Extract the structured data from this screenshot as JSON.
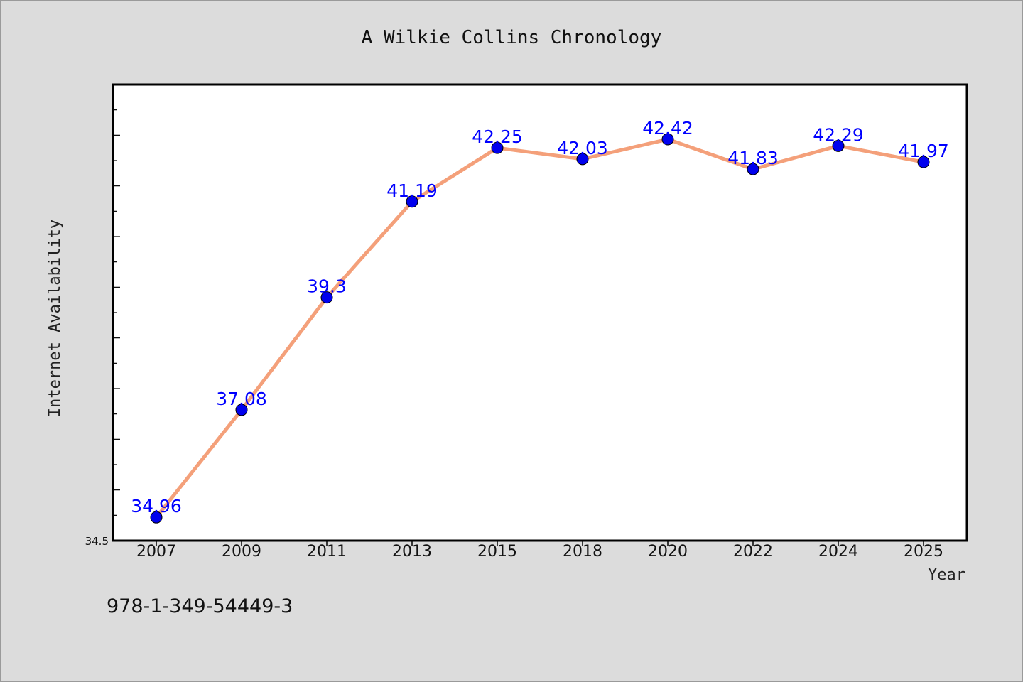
{
  "chart_data": {
    "type": "line",
    "title": "A Wilkie Collins Chronology",
    "xlabel": "Year",
    "ylabel": "Internet Availability",
    "categories": [
      "2007",
      "2009",
      "2011",
      "2013",
      "2015",
      "2018",
      "2020",
      "2022",
      "2024",
      "2025"
    ],
    "values": [
      34.96,
      37.08,
      39.3,
      41.19,
      42.25,
      42.03,
      42.42,
      41.83,
      42.29,
      41.97
    ],
    "data_labels": [
      "34.96",
      "37.08",
      "39.3",
      "41.19",
      "42.25",
      "42.03",
      "42.42",
      "41.83",
      "42.29",
      "41.97"
    ],
    "ylim": [
      34.5,
      43.5
    ],
    "yticks_labeled": [
      "34.5"
    ],
    "grid": false,
    "line_color": "#f4a07a",
    "marker_color": "#0000ee",
    "label_color": "#0000ff"
  },
  "footnote": "978-1-349-54449-3"
}
